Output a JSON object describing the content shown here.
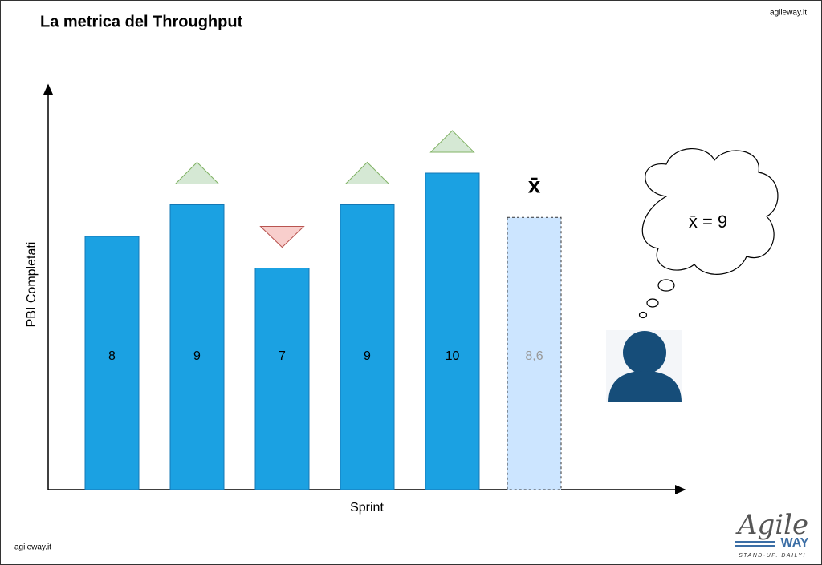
{
  "title": "La metrica del Throughput",
  "site_top": "agileway.it",
  "site_bottom": "agileway.it",
  "thought": "x̄ = 9",
  "logo": {
    "name": "Agile",
    "sub": "WAY",
    "tagline": "STAND-UP. DAILY!"
  },
  "chart_data": {
    "type": "bar",
    "y_label": "PBI Completati",
    "x_label": "Sprint",
    "categories": [
      null,
      null,
      null,
      null,
      null
    ],
    "values": [
      8,
      9,
      7,
      9,
      10
    ],
    "color": "#1ba1e2",
    "mean": {
      "symbol": "x̄",
      "value": 8.6,
      "label": "8,6",
      "color": "#cce5ff"
    }
  }
}
